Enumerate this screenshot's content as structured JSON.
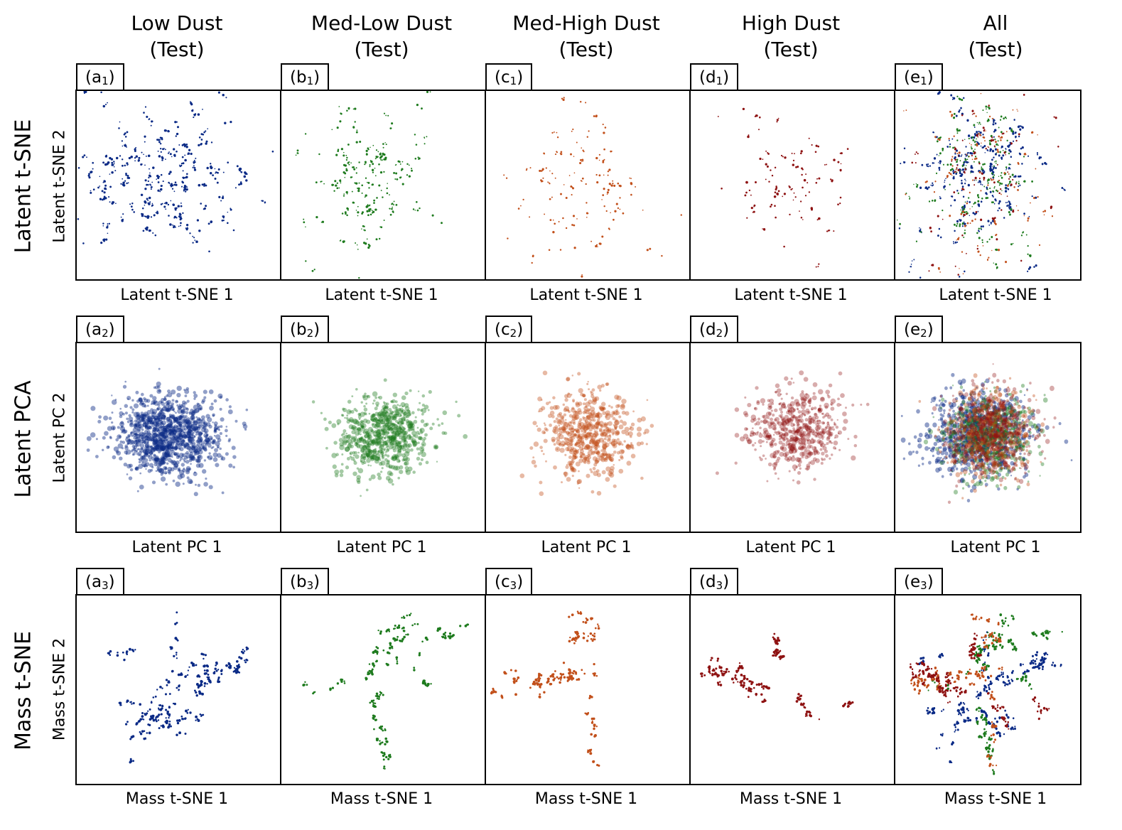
{
  "columns": [
    {
      "title_line1": "Low Dust",
      "title_line2": "(Test)",
      "letter": "a",
      "color": "#0a2a86"
    },
    {
      "title_line1": "Med-Low Dust",
      "title_line2": "(Test)",
      "letter": "b",
      "color": "#1e7b1e"
    },
    {
      "title_line1": "Med-High Dust",
      "title_line2": "(Test)",
      "letter": "c",
      "color": "#c2501b"
    },
    {
      "title_line1": "High Dust",
      "title_line2": "(Test)",
      "letter": "d",
      "color": "#8e1212"
    },
    {
      "title_line1": "All",
      "title_line2": "(Test)",
      "letter": "e",
      "color": "mixed"
    }
  ],
  "rows": [
    {
      "row_label": "Latent t-SNE",
      "xlabel": "Latent t-SNE 1",
      "ylabel": "Latent t-SNE 2",
      "index": "1"
    },
    {
      "row_label": "Latent PCA",
      "xlabel": "Latent PC 1",
      "ylabel": "Latent PC 2",
      "index": "2"
    },
    {
      "row_label": "Mass t-SNE",
      "xlabel": "Mass t-SNE 1",
      "ylabel": "Mass t-SNE 2",
      "index": "3"
    }
  ],
  "chart_data": {
    "type": "scatter",
    "layout": "3x5 grid of scatter panels",
    "axes_ticks": "none",
    "grid": false,
    "series_colors": {
      "Low Dust": "#0a2a86",
      "Med-Low Dust": "#1e7b1e",
      "Med-High Dust": "#c2501b",
      "High Dust": "#8e1212"
    },
    "panels": [
      {
        "tag_letter": "a",
        "tag_index": "1",
        "x_range": [
          -1,
          1
        ],
        "y_range": [
          -1,
          1
        ]
      },
      {
        "tag_letter": "b",
        "tag_index": "1",
        "x_range": [
          -1,
          1
        ],
        "y_range": [
          -1,
          1
        ]
      },
      {
        "tag_letter": "c",
        "tag_index": "1",
        "x_range": [
          -1,
          1
        ],
        "y_range": [
          -1,
          1
        ]
      },
      {
        "tag_letter": "d",
        "tag_index": "1",
        "x_range": [
          -1,
          1
        ],
        "y_range": [
          -1,
          1
        ]
      },
      {
        "tag_letter": "e",
        "tag_index": "1",
        "x_range": [
          -1,
          1
        ],
        "y_range": [
          -1,
          1
        ]
      },
      {
        "tag_letter": "a",
        "tag_index": "2",
        "x_range": [
          -1,
          1
        ],
        "y_range": [
          -1,
          1
        ]
      },
      {
        "tag_letter": "b",
        "tag_index": "2",
        "x_range": [
          -1,
          1
        ],
        "y_range": [
          -1,
          1
        ]
      },
      {
        "tag_letter": "c",
        "tag_index": "2",
        "x_range": [
          -1,
          1
        ],
        "y_range": [
          -1,
          1
        ]
      },
      {
        "tag_letter": "d",
        "tag_index": "2",
        "x_range": [
          -1,
          1
        ],
        "y_range": [
          -1,
          1
        ]
      },
      {
        "tag_letter": "e",
        "tag_index": "2",
        "x_range": [
          -1,
          1
        ],
        "y_range": [
          -1,
          1
        ]
      },
      {
        "tag_letter": "a",
        "tag_index": "3",
        "x_range": [
          -1,
          1
        ],
        "y_range": [
          -1,
          1
        ]
      },
      {
        "tag_letter": "b",
        "tag_index": "3",
        "x_range": [
          -1,
          1
        ],
        "y_range": [
          -1,
          1
        ]
      },
      {
        "tag_letter": "c",
        "tag_index": "3",
        "x_range": [
          -1,
          1
        ],
        "y_range": [
          -1,
          1
        ]
      },
      {
        "tag_letter": "d",
        "tag_index": "3",
        "x_range": [
          -1,
          1
        ],
        "y_range": [
          -1,
          1
        ]
      },
      {
        "tag_letter": "e",
        "tag_index": "3",
        "x_range": [
          -1,
          1
        ],
        "y_range": [
          -1,
          1
        ]
      }
    ]
  }
}
